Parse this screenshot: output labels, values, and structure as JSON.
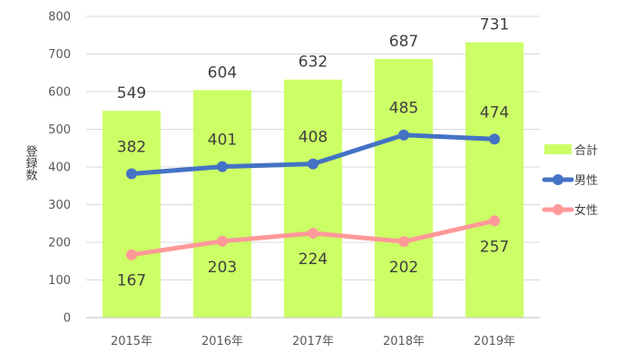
{
  "chart_data": {
    "type": "bar+line",
    "categories": [
      "2015年",
      "2016年",
      "2017年",
      "2018年",
      "2019年"
    ],
    "ylabel": "登録数",
    "ylim": [
      0,
      800
    ],
    "yticks": [
      "0",
      "100",
      "200",
      "300",
      "400",
      "500",
      "600",
      "700",
      "800"
    ],
    "grid": true,
    "legend_position": "right",
    "series": [
      {
        "name": "合計",
        "type": "bar",
        "color": "#ccff66",
        "values": [
          549,
          604,
          632,
          687,
          731
        ]
      },
      {
        "name": "男性",
        "type": "line",
        "color": "#4472c4",
        "values": [
          382,
          401,
          408,
          485,
          474
        ]
      },
      {
        "name": "女性",
        "type": "line",
        "color": "#ff9999",
        "values": [
          167,
          203,
          224,
          202,
          257
        ]
      }
    ]
  }
}
